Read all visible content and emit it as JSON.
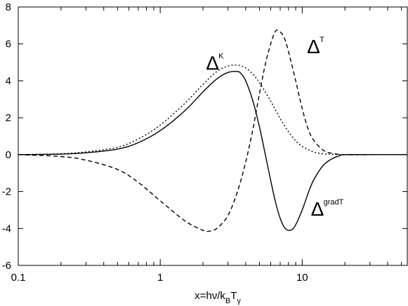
{
  "chart_data": {
    "type": "line",
    "title": "",
    "xlabel": {
      "parts": [
        {
          "text": "x=h",
          "shift": "none"
        },
        {
          "text": "ν",
          "shift": "none"
        },
        {
          "text": "/k",
          "shift": "none"
        },
        {
          "text": "B",
          "shift": "sub"
        },
        {
          "text": "T",
          "shift": "none"
        },
        {
          "text": "γ",
          "shift": "sub"
        }
      ]
    },
    "ylabel": "",
    "xscale": "log",
    "xlim": [
      0.1,
      55
    ],
    "ylim": [
      -6,
      8
    ],
    "xticks": [
      0.1,
      1,
      10
    ],
    "xtick_labels": [
      "0.1",
      "1",
      "10"
    ],
    "yticks": [
      -6,
      -4,
      -2,
      0,
      2,
      4,
      6,
      8
    ],
    "ytick_labels": [
      "-6",
      "-4",
      "-2",
      "0",
      "2",
      "4",
      "6",
      "8"
    ],
    "grid": false,
    "legend": "none",
    "series": [
      {
        "label_main": "Δ",
        "label_sup": "K",
        "label_at": [
          2.1,
          4.6
        ],
        "line_style": "dotted",
        "x": [
          0.1,
          0.2,
          0.3,
          0.5,
          0.7,
          1.0,
          1.5,
          2.0,
          2.5,
          3.0,
          3.5,
          4.0,
          4.5,
          5.0,
          6.0,
          7.0,
          8.0,
          9.0,
          10.0,
          12.0,
          14.0,
          16.0,
          20.0,
          30.0,
          55.0
        ],
        "y": [
          0.0,
          0.05,
          0.15,
          0.4,
          0.85,
          1.6,
          2.8,
          3.8,
          4.5,
          4.8,
          4.85,
          4.7,
          4.35,
          3.9,
          2.9,
          1.95,
          1.25,
          0.75,
          0.45,
          0.15,
          0.05,
          0.02,
          0.0,
          0.0,
          0.0
        ]
      },
      {
        "label_main": "Δ",
        "label_sup": "T",
        "label_at": [
          10.8,
          5.5
        ],
        "line_style": "dashed",
        "x": [
          0.1,
          0.2,
          0.3,
          0.5,
          0.7,
          1.0,
          1.5,
          2.0,
          2.2,
          2.5,
          3.0,
          3.5,
          4.0,
          4.5,
          5.0,
          5.5,
          6.0,
          6.5,
          7.0,
          7.5,
          8.0,
          9.0,
          10.0,
          11.0,
          12.0,
          14.0,
          16.0,
          20.0,
          30.0,
          55.0
        ],
        "y": [
          0.0,
          -0.1,
          -0.3,
          -0.8,
          -1.5,
          -2.5,
          -3.6,
          -4.1,
          -4.15,
          -4.0,
          -3.3,
          -2.0,
          -0.4,
          1.4,
          3.3,
          4.9,
          6.0,
          6.7,
          6.65,
          6.3,
          5.6,
          4.0,
          2.5,
          1.4,
          0.8,
          0.25,
          0.08,
          0.0,
          0.0,
          0.0
        ]
      },
      {
        "label_main": "Δ",
        "label_sup": "gradT",
        "label_at": [
          11.5,
          -3.3
        ],
        "line_style": "solid",
        "x": [
          0.1,
          0.2,
          0.3,
          0.5,
          0.7,
          1.0,
          1.5,
          2.0,
          2.5,
          3.0,
          3.5,
          3.7,
          4.0,
          4.5,
          5.0,
          5.5,
          6.0,
          6.5,
          7.0,
          7.5,
          8.0,
          8.5,
          9.0,
          10.0,
          11.0,
          12.0,
          14.0,
          16.0,
          18.0,
          20.0,
          30.0,
          55.0
        ],
        "y": [
          0.0,
          0.03,
          0.1,
          0.3,
          0.65,
          1.3,
          2.4,
          3.4,
          4.1,
          4.45,
          4.5,
          4.4,
          4.0,
          2.9,
          1.5,
          0.0,
          -1.4,
          -2.6,
          -3.45,
          -3.95,
          -4.1,
          -4.05,
          -3.8,
          -3.0,
          -2.1,
          -1.4,
          -0.6,
          -0.25,
          -0.08,
          0.0,
          0.0,
          0.0
        ]
      }
    ]
  }
}
